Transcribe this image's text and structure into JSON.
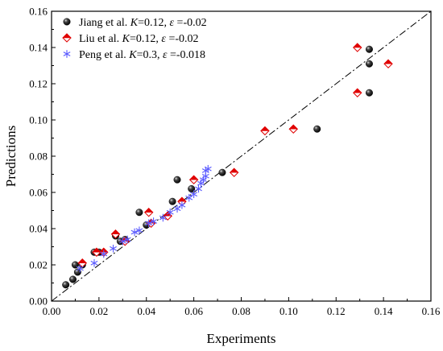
{
  "chart_data": {
    "type": "scatter",
    "xlabel": "Experiments",
    "ylabel": "Predictions",
    "xlim": [
      0.0,
      0.16
    ],
    "ylim": [
      0.0,
      0.16
    ],
    "x_ticks": [
      "0.00",
      "0.02",
      "0.04",
      "0.06",
      "0.08",
      "0.10",
      "0.12",
      "0.14",
      "0.16"
    ],
    "y_ticks": [
      "0.00",
      "0.02",
      "0.04",
      "0.06",
      "0.08",
      "0.10",
      "0.12",
      "0.14",
      "0.16"
    ],
    "grid": false,
    "legend_position": "top-left",
    "reference_line": {
      "style": "dash-dot",
      "from": [
        0.0,
        0.0
      ],
      "to": [
        0.16,
        0.16
      ]
    },
    "series": [
      {
        "name": "Jiang et al.",
        "legend_parts": [
          {
            "t": "Jiang et al. ",
            "i": false
          },
          {
            "t": "K",
            "i": true
          },
          {
            "t": "=0.12, ",
            "i": false
          },
          {
            "t": "ε",
            "i": true
          },
          {
            "t": " =-0.02",
            "i": false
          }
        ],
        "marker": "ball",
        "color": "#111111",
        "points": [
          [
            0.006,
            0.009
          ],
          [
            0.009,
            0.012
          ],
          [
            0.01,
            0.02
          ],
          [
            0.011,
            0.016
          ],
          [
            0.013,
            0.02
          ],
          [
            0.018,
            0.027
          ],
          [
            0.02,
            0.027
          ],
          [
            0.027,
            0.036
          ],
          [
            0.029,
            0.033
          ],
          [
            0.031,
            0.034
          ],
          [
            0.037,
            0.049
          ],
          [
            0.04,
            0.042
          ],
          [
            0.051,
            0.055
          ],
          [
            0.053,
            0.067
          ],
          [
            0.059,
            0.062
          ],
          [
            0.072,
            0.071
          ],
          [
            0.112,
            0.095
          ],
          [
            0.134,
            0.139
          ],
          [
            0.134,
            0.131
          ],
          [
            0.134,
            0.115
          ]
        ]
      },
      {
        "name": "Liu et al.",
        "legend_parts": [
          {
            "t": "Liu et al.  ",
            "i": false
          },
          {
            "t": "K",
            "i": true
          },
          {
            "t": "=0.12, ",
            "i": false
          },
          {
            "t": "ε",
            "i": true
          },
          {
            "t": " =-0.02",
            "i": false
          }
        ],
        "marker": "diamond",
        "color": "#e00000",
        "points": [
          [
            0.013,
            0.021
          ],
          [
            0.019,
            0.027
          ],
          [
            0.022,
            0.027
          ],
          [
            0.027,
            0.037
          ],
          [
            0.031,
            0.033
          ],
          [
            0.041,
            0.049
          ],
          [
            0.042,
            0.043
          ],
          [
            0.049,
            0.047
          ],
          [
            0.055,
            0.055
          ],
          [
            0.06,
            0.067
          ],
          [
            0.077,
            0.071
          ],
          [
            0.09,
            0.094
          ],
          [
            0.102,
            0.095
          ],
          [
            0.129,
            0.14
          ],
          [
            0.129,
            0.115
          ],
          [
            0.142,
            0.131
          ]
        ]
      },
      {
        "name": "Peng et al.",
        "legend_parts": [
          {
            "t": "Peng et al. ",
            "i": false
          },
          {
            "t": "K",
            "i": true
          },
          {
            "t": "=0.3, ",
            "i": false
          },
          {
            "t": "ε",
            "i": true
          },
          {
            "t": " =-0.018",
            "i": false
          }
        ],
        "marker": "asterisk",
        "color": "#5a5aff",
        "points": [
          [
            0.012,
            0.018
          ],
          [
            0.018,
            0.021
          ],
          [
            0.022,
            0.026
          ],
          [
            0.026,
            0.029
          ],
          [
            0.03,
            0.033
          ],
          [
            0.032,
            0.034
          ],
          [
            0.035,
            0.038
          ],
          [
            0.037,
            0.039
          ],
          [
            0.041,
            0.043
          ],
          [
            0.043,
            0.044
          ],
          [
            0.047,
            0.046
          ],
          [
            0.05,
            0.049
          ],
          [
            0.053,
            0.051
          ],
          [
            0.055,
            0.053
          ],
          [
            0.058,
            0.057
          ],
          [
            0.06,
            0.059
          ],
          [
            0.062,
            0.062
          ],
          [
            0.063,
            0.065
          ],
          [
            0.064,
            0.067
          ],
          [
            0.065,
            0.069
          ],
          [
            0.065,
            0.072
          ],
          [
            0.066,
            0.073
          ]
        ]
      }
    ]
  }
}
